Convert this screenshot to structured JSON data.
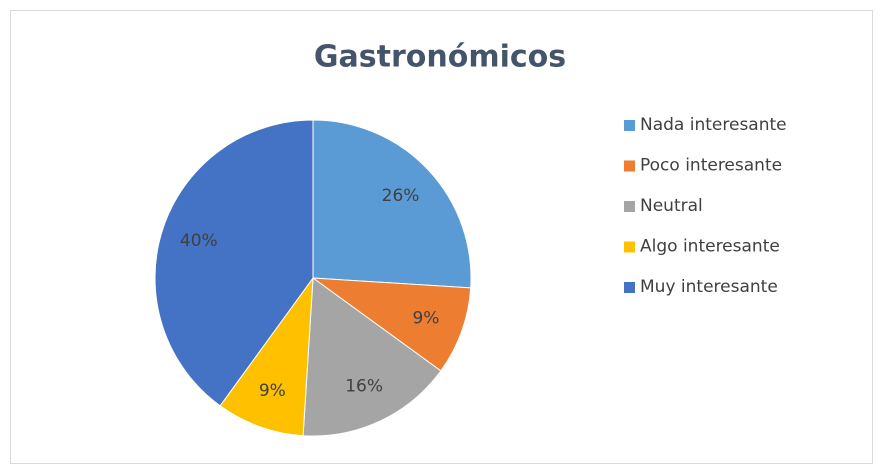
{
  "chart_data": {
    "type": "pie",
    "title": "Gastronómicos",
    "categories": [
      "Nada interesante",
      "Poco interesante",
      "Neutral",
      "Algo interesante",
      "Muy interesante"
    ],
    "values": [
      26,
      9,
      16,
      9,
      40
    ],
    "value_labels": [
      "26%",
      "9%",
      "16%",
      "9%",
      "40%"
    ],
    "colors": [
      "#5b9bd5",
      "#ed7d31",
      "#a5a5a5",
      "#ffc000",
      "#4472c4"
    ],
    "legend": "right"
  }
}
